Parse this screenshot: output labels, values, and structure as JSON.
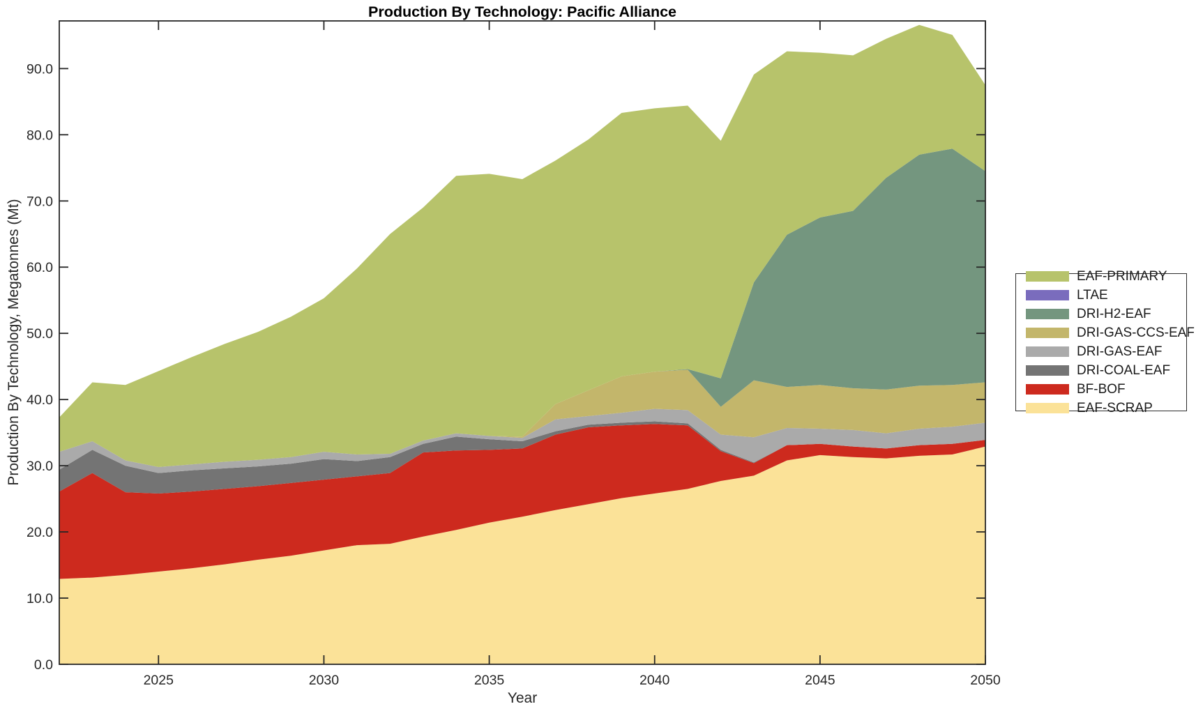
{
  "title": "Production By Technology: Pacific Alliance",
  "xlabel": "Year",
  "ylabel": "Production By Technology, Megatonnes (Mt)",
  "chart_data": {
    "type": "area",
    "stacked": true,
    "grid": false,
    "legend_position": "right-outside",
    "xlim": [
      2022,
      2050
    ],
    "ylim": [
      0,
      97.2
    ],
    "xticks": [
      2025,
      2030,
      2035,
      2040,
      2045,
      2050
    ],
    "yticks": [
      0,
      10,
      20,
      30,
      40,
      50,
      60,
      70,
      80,
      90
    ],
    "ytick_format": "one_decimal",
    "x": [
      2022,
      2023,
      2024,
      2025,
      2026,
      2027,
      2028,
      2029,
      2030,
      2031,
      2032,
      2033,
      2034,
      2035,
      2036,
      2037,
      2038,
      2039,
      2040,
      2041,
      2042,
      2043,
      2044,
      2045,
      2046,
      2047,
      2048,
      2049,
      2050
    ],
    "series": [
      {
        "name": "EAF-SCRAP",
        "slug": "eaf-scrap",
        "color": "#fbe298",
        "values": [
          12.9,
          13.1,
          13.5,
          14.0,
          14.5,
          15.1,
          15.8,
          16.4,
          17.2,
          18.0,
          18.2,
          19.3,
          20.3,
          21.4,
          22.3,
          23.3,
          24.2,
          25.1,
          25.8,
          26.5,
          27.7,
          28.5,
          30.8,
          31.6,
          31.3,
          31.1,
          31.5,
          31.7,
          32.9
        ]
      },
      {
        "name": "BF-BOF",
        "slug": "bf-bof",
        "color": "#cd2a1e",
        "values": [
          13.2,
          15.8,
          12.5,
          11.8,
          11.6,
          11.4,
          11.1,
          11.0,
          10.7,
          10.4,
          10.7,
          12.7,
          12.0,
          11.0,
          10.3,
          11.4,
          11.6,
          11.0,
          10.5,
          9.6,
          4.5,
          1.9,
          2.3,
          1.7,
          1.6,
          1.5,
          1.6,
          1.6,
          1.0
        ]
      },
      {
        "name": "DRI-COAL-EAF",
        "slug": "dri-coal-eaf",
        "color": "#747474",
        "values": [
          3.3,
          3.5,
          4.0,
          3.1,
          3.2,
          3.1,
          3.0,
          2.9,
          3.1,
          2.3,
          2.4,
          1.3,
          2.1,
          1.6,
          1.1,
          0.5,
          0.4,
          0.4,
          0.4,
          0.3,
          0.2,
          0.1,
          0,
          0,
          0,
          0,
          0,
          0,
          0
        ]
      },
      {
        "name": "DRI-GAS-EAF",
        "slug": "dri-gas-eaf",
        "color": "#aaaaaa",
        "values": [
          2.7,
          1.3,
          0.8,
          0.9,
          0.9,
          1.0,
          1.0,
          1.0,
          1.1,
          1.0,
          0.5,
          0.5,
          0.5,
          0.5,
          0.5,
          1.8,
          1.3,
          1.5,
          1.9,
          2.0,
          2.3,
          3.8,
          2.6,
          2.3,
          2.5,
          2.3,
          2.5,
          2.6,
          2.6
        ]
      },
      {
        "name": "DRI-GAS-CCS-EAF",
        "slug": "dri-gas-ccs-eaf",
        "color": "#c3b66b",
        "values": [
          0,
          0,
          0,
          0,
          0,
          0,
          0,
          0,
          0,
          0,
          0,
          0,
          0,
          0,
          0.2,
          2.3,
          3.9,
          5.5,
          5.6,
          6.1,
          4.2,
          8.6,
          6.2,
          6.6,
          6.3,
          6.6,
          6.5,
          6.3,
          6.1
        ]
      },
      {
        "name": "DRI-H2-EAF",
        "slug": "dri-h2-eaf",
        "color": "#74967f",
        "values": [
          0,
          0,
          0,
          0,
          0,
          0,
          0,
          0,
          0,
          0,
          0,
          0,
          0,
          0,
          0,
          0,
          0,
          0,
          0,
          0.1,
          4.3,
          14.8,
          23.0,
          25.3,
          26.8,
          32.0,
          34.9,
          35.7,
          31.9
        ]
      },
      {
        "name": "LTAE",
        "slug": "ltae",
        "color": "#7a6cbd",
        "values": [
          0,
          0,
          0,
          0,
          0,
          0,
          0,
          0,
          0,
          0,
          0,
          0,
          0,
          0,
          0,
          0,
          0,
          0,
          0,
          0,
          0,
          0,
          0,
          0,
          0,
          0,
          0,
          0,
          0
        ]
      },
      {
        "name": "EAF-PRIMARY",
        "slug": "eaf-primary",
        "color": "#b7c36b",
        "values": [
          5.2,
          8.9,
          11.4,
          14.5,
          16.2,
          17.8,
          19.3,
          21.2,
          23.2,
          28.1,
          33.2,
          35.2,
          38.9,
          39.6,
          38.9,
          36.8,
          37.9,
          39.8,
          39.8,
          39.8,
          35.9,
          31.4,
          27.7,
          24.9,
          23.5,
          21.0,
          19.6,
          17.2,
          13.0
        ]
      }
    ],
    "legend_top_to_bottom": [
      "EAF-PRIMARY",
      "LTAE",
      "DRI-H2-EAF",
      "DRI-GAS-CCS-EAF",
      "DRI-GAS-EAF",
      "DRI-COAL-EAF",
      "BF-BOF",
      "EAF-SCRAP"
    ]
  },
  "style": {
    "axis_color": "#262626",
    "title_color": "#000000",
    "background": "#ffffff"
  }
}
